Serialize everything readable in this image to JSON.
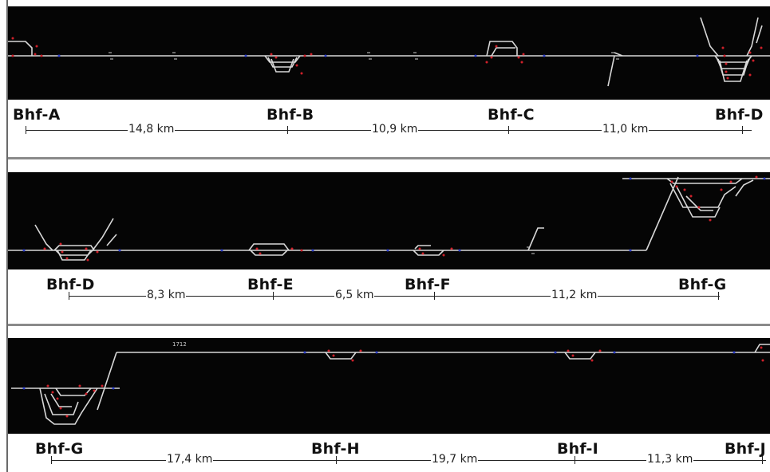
{
  "rows": [
    {
      "stations": [
        "Bhf-A",
        "Bhf-B",
        "Bhf-C",
        "Bhf-D"
      ],
      "distances": [
        "14,8 km",
        "10,9 km",
        "11,0 km"
      ]
    },
    {
      "stations": [
        "Bhf-D",
        "Bhf-E",
        "Bhf-F",
        "Bhf-G"
      ],
      "distances": [
        "8,3 km",
        "6,5 km",
        "11,2 km"
      ]
    },
    {
      "stations": [
        "Bhf-G",
        "Bhf-H",
        "Bhf-I",
        "Bhf-J"
      ],
      "distances": [
        "17,4 km",
        "19,7 km",
        "11,3 km"
      ],
      "track_label": "1712"
    }
  ],
  "colors": {
    "panel_bg": "#050505",
    "track": "#d8d8d8",
    "signal_red": "#d0202a",
    "signal_blue": "#2a3cc8",
    "text": "#111111"
  }
}
